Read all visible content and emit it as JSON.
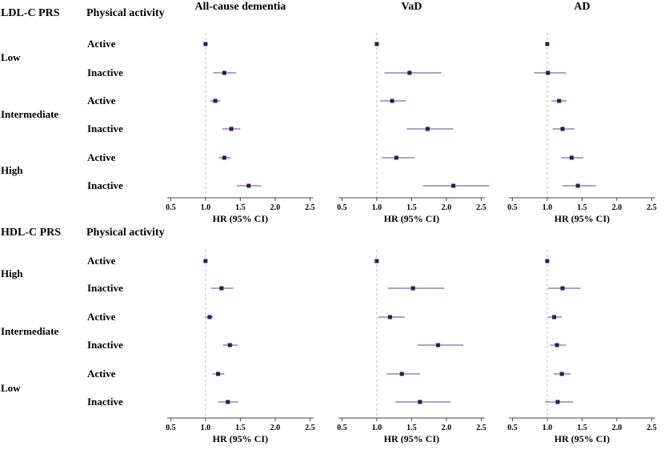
{
  "chart_data": [
    {
      "type": "forest",
      "group_title": "LDL-C PRS",
      "activity_title": "Physical activity",
      "levels": [
        {
          "name": "Low",
          "rows": [
            "Active",
            "Inactive"
          ]
        },
        {
          "name": "Intermediate",
          "rows": [
            "Active",
            "Inactive"
          ]
        },
        {
          "name": "High",
          "rows": [
            "Active",
            "Inactive"
          ]
        }
      ],
      "xlabel": "HR (95% CI)",
      "xlim": [
        0.45,
        2.55
      ],
      "xticks": [
        "0.5",
        "1.0",
        "1.5",
        "2.0",
        "2.5"
      ],
      "reference_line": 1.0,
      "panels": [
        {
          "title": "All-cause dementia",
          "hr": [
            1.0,
            1.27,
            1.14,
            1.37,
            1.27,
            1.62
          ],
          "lo": [
            1.0,
            1.11,
            1.07,
            1.24,
            1.19,
            1.45
          ],
          "hi": [
            1.0,
            1.44,
            1.21,
            1.5,
            1.36,
            1.8
          ]
        },
        {
          "title": "VaD",
          "hr": [
            1.0,
            1.47,
            1.22,
            1.73,
            1.28,
            2.1
          ],
          "lo": [
            1.0,
            1.11,
            1.05,
            1.43,
            1.07,
            1.66
          ],
          "hi": [
            1.0,
            1.93,
            1.42,
            2.1,
            1.54,
            2.62
          ]
        },
        {
          "title": "AD",
          "hr": [
            1.0,
            1.01,
            1.17,
            1.22,
            1.35,
            1.44
          ],
          "lo": [
            1.0,
            0.81,
            1.06,
            1.08,
            1.2,
            1.22
          ],
          "hi": [
            1.0,
            1.27,
            1.28,
            1.39,
            1.52,
            1.7
          ]
        }
      ]
    },
    {
      "type": "forest",
      "group_title": "HDL-C PRS",
      "activity_title": "Physical activity",
      "levels": [
        {
          "name": "High",
          "rows": [
            "Active",
            "Inactive"
          ]
        },
        {
          "name": "Intermediate",
          "rows": [
            "Active",
            "Inactive"
          ]
        },
        {
          "name": "Low",
          "rows": [
            "Active",
            "Inactive"
          ]
        }
      ],
      "xlabel": "HR (95% CI)",
      "xlim": [
        0.45,
        2.55
      ],
      "xticks": [
        "0.5",
        "1.0",
        "1.5",
        "2.0",
        "2.5"
      ],
      "reference_line": 1.0,
      "panels": [
        {
          "title": "",
          "hr": [
            1.0,
            1.23,
            1.06,
            1.35,
            1.18,
            1.32
          ],
          "lo": [
            1.0,
            1.08,
            1.0,
            1.25,
            1.1,
            1.18
          ],
          "hi": [
            1.0,
            1.4,
            1.11,
            1.46,
            1.27,
            1.47
          ]
        },
        {
          "title": "",
          "hr": [
            1.0,
            1.52,
            1.19,
            1.88,
            1.36,
            1.62
          ],
          "lo": [
            1.0,
            1.16,
            1.02,
            1.59,
            1.14,
            1.27
          ],
          "hi": [
            1.0,
            1.97,
            1.4,
            2.24,
            1.62,
            2.06
          ]
        },
        {
          "title": "",
          "hr": [
            1.0,
            1.22,
            1.1,
            1.14,
            1.21,
            1.15
          ],
          "lo": [
            1.0,
            1.01,
            1.01,
            1.04,
            1.09,
            0.97
          ],
          "hi": [
            1.0,
            1.48,
            1.21,
            1.27,
            1.34,
            1.37
          ]
        }
      ]
    }
  ],
  "colors": {
    "ci_line": "#7b6bb0",
    "point": "#3b1352",
    "ref_line": "#bdbdbd",
    "axis": "#444444"
  }
}
